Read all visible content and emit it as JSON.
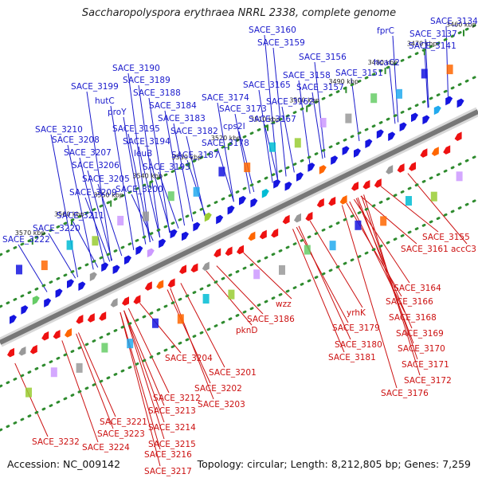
{
  "title": "Saccharopolyspora erythraea NRRL 2338, complete genome",
  "accession_text": "Accession: NC_009142",
  "summary_text": "Topology: circular; Length: 8,212,805 bp; Genes: 7,259",
  "colors": {
    "forward_label": "#1a1acc",
    "reverse_label": "#cc1111",
    "backbone": "#777777",
    "track_dots": "#2e8b2e",
    "forward_gene": "#1515e0",
    "reverse_gene": "#ee1111"
  },
  "kbp_ticks": [
    "3460 kbp",
    "3470 kbp",
    "3480 kbp",
    "3490 kbp",
    "3500 kbp",
    "3510 kbp",
    "3520 kbp",
    "3530 kbp",
    "3540 kbp",
    "3550 kbp",
    "3560 kbp",
    "3570 kbp"
  ],
  "top_labels": [
    "SACE_3134",
    "SACE_3137",
    "fprC",
    "SACE_3141",
    "SACE_3160",
    "SACE_3159",
    "SACE_3156",
    "hcaC2",
    "SACE_3158",
    "SACE_3151",
    "SACE_3165",
    "SACE_3157",
    "SACE_3162",
    "SACE_3174",
    "SACE_3173",
    "SACE_3167",
    "cps2I",
    "SACE_3178",
    "SACE_3190",
    "SACE_3189",
    "SACE_3199",
    "SACE_3188",
    "hutC",
    "SACE_3184",
    "proY",
    "SACE_3183",
    "SACE_3182",
    "SACE_3195",
    "SACE_3194",
    "SACE_3210",
    "leuB",
    "SACE_3187",
    "SACE_3208",
    "SACE_3207",
    "SACE_3193",
    "SACE_3206",
    "SACE_3205",
    "SACE_3200",
    "SACE_3209",
    "SACE_3211",
    "SACE_3220",
    "SACE_3222"
  ],
  "bottom_labels": [
    "SACE_3155",
    "SACE_3161",
    "accC3",
    "SACE_3164",
    "SACE_3166",
    "SACE_3168",
    "SACE_3169",
    "SACE_3170",
    "SACE_3171",
    "SACE_3172",
    "SACE_3176",
    "wzz",
    "yrhK",
    "SACE_3186",
    "pknD",
    "SACE_3179",
    "SACE_3180",
    "SACE_3181",
    "SACE_3201",
    "SACE_3204",
    "SACE_3202",
    "SACE_3203",
    "SACE_3212",
    "SACE_3213",
    "SACE_3214",
    "SACE_3215",
    "SACE_3216",
    "SACE_3217",
    "SACE_3221",
    "SACE_3223",
    "SACE_3224",
    "SACE_3232"
  ]
}
